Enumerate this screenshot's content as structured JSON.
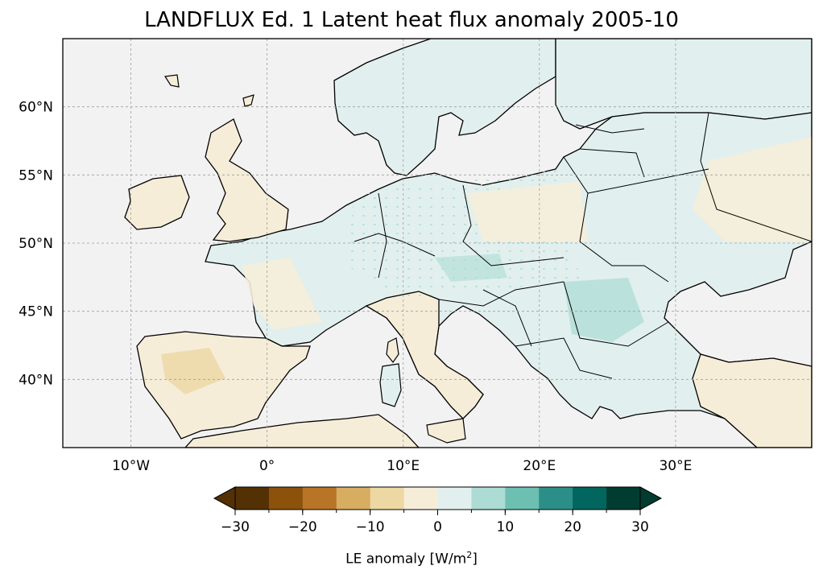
{
  "title": "LANDFLUX Ed. 1 Latent heat flux anomaly 2005-10",
  "map": {
    "projection": "PlateCarree",
    "lon_range": [
      -15,
      40
    ],
    "lat_range": [
      35,
      65
    ],
    "lon_ticks": [
      {
        "value": -10,
        "label": "10°W"
      },
      {
        "value": 0,
        "label": "0°"
      },
      {
        "value": 10,
        "label": "10°E"
      },
      {
        "value": 20,
        "label": "20°E"
      },
      {
        "value": 30,
        "label": "30°E"
      }
    ],
    "lat_ticks": [
      {
        "value": 60,
        "label": "60°N"
      },
      {
        "value": 55,
        "label": "55°N"
      },
      {
        "value": 50,
        "label": "50°N"
      },
      {
        "value": 45,
        "label": "45°N"
      },
      {
        "value": 40,
        "label": "40°N"
      }
    ],
    "gridlines": true,
    "ocean_color": "#f2f2f2",
    "coastline_color": "#000000"
  },
  "colorbar": {
    "label_text": "LE anomaly [W/m",
    "label_sup": "2",
    "label_close": "]",
    "extend": "both",
    "levels": [
      -30,
      -25,
      -20,
      -15,
      -10,
      -5,
      0,
      5,
      10,
      15,
      20,
      25,
      30
    ],
    "colors": [
      "#543005",
      "#8c510a",
      "#b87527",
      "#d7ad61",
      "#edd7a2",
      "#f6edd9",
      "#e1f0ee",
      "#addcd5",
      "#6dbfb2",
      "#2c8f87",
      "#01665e",
      "#003c30"
    ],
    "under_color": "#543005",
    "over_color": "#003c30",
    "tick_labels": [
      "−30",
      "−20",
      "−10",
      "0",
      "10",
      "20",
      "30"
    ],
    "tick_values": [
      -30,
      -20,
      -10,
      0,
      10,
      20,
      30
    ]
  }
}
